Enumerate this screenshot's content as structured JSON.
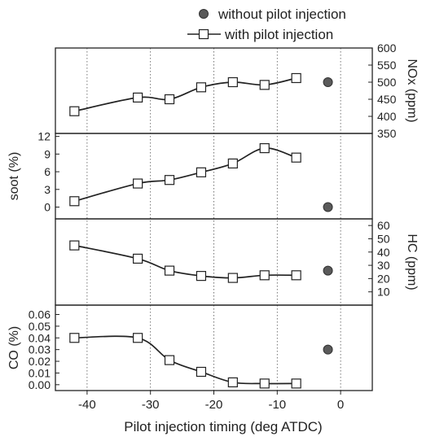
{
  "chart_data": {
    "type": "line",
    "xlabel": "Pilot injection timing (deg ATDC)",
    "xlim": [
      -45,
      5
    ],
    "xticks": [
      -40,
      -30,
      -20,
      -10,
      0
    ],
    "legend": {
      "position": "top",
      "entries": [
        "without pilot injection",
        "with pilot injection"
      ]
    },
    "grid": "vertical dotted lines at x ticks",
    "panels": [
      {
        "ylabel": "NOx (ppm)",
        "axis_side": "right",
        "ylim": [
          350,
          600
        ],
        "yticks": [
          350,
          400,
          450,
          500,
          550,
          600
        ],
        "with_pilot": {
          "x": [
            -42,
            -32,
            -27,
            -22,
            -17,
            -12,
            -7
          ],
          "y": [
            415,
            455,
            450,
            485,
            500,
            492,
            512
          ]
        },
        "without_pilot": {
          "x": [
            -2
          ],
          "y": [
            500
          ]
        }
      },
      {
        "ylabel": "soot (%)",
        "axis_side": "left",
        "ylim": [
          -2,
          12.5
        ],
        "yticks": [
          0,
          3,
          6,
          9,
          12
        ],
        "with_pilot": {
          "x": [
            -42,
            -32,
            -27,
            -22,
            -17,
            -12,
            -7
          ],
          "y": [
            1,
            4,
            4.6,
            5.9,
            7.4,
            10,
            8.4
          ]
        },
        "without_pilot": {
          "x": [
            -2
          ],
          "y": [
            0
          ]
        }
      },
      {
        "ylabel": "HC (ppm)",
        "axis_side": "right",
        "ylim": [
          0,
          65
        ],
        "yticks": [
          10,
          20,
          30,
          40,
          50,
          60
        ],
        "with_pilot": {
          "x": [
            -42,
            -32,
            -27,
            -22,
            -17,
            -12,
            -7
          ],
          "y": [
            45,
            35,
            26,
            22,
            20.5,
            22.5,
            22.5
          ]
        },
        "without_pilot": {
          "x": [
            -2
          ],
          "y": [
            26
          ]
        }
      },
      {
        "ylabel": "CO (%)",
        "axis_side": "left",
        "ylim": [
          -0.005,
          0.068
        ],
        "yticks": [
          0.0,
          0.01,
          0.02,
          0.03,
          0.04,
          0.05,
          0.06
        ],
        "with_pilot": {
          "x": [
            -42,
            -32,
            -27,
            -22,
            -17,
            -12,
            -7
          ],
          "y": [
            0.04,
            0.04,
            0.021,
            0.011,
            0.002,
            0.001,
            0.001
          ]
        },
        "without_pilot": {
          "x": [
            -2
          ],
          "y": [
            0.03
          ]
        }
      }
    ]
  }
}
